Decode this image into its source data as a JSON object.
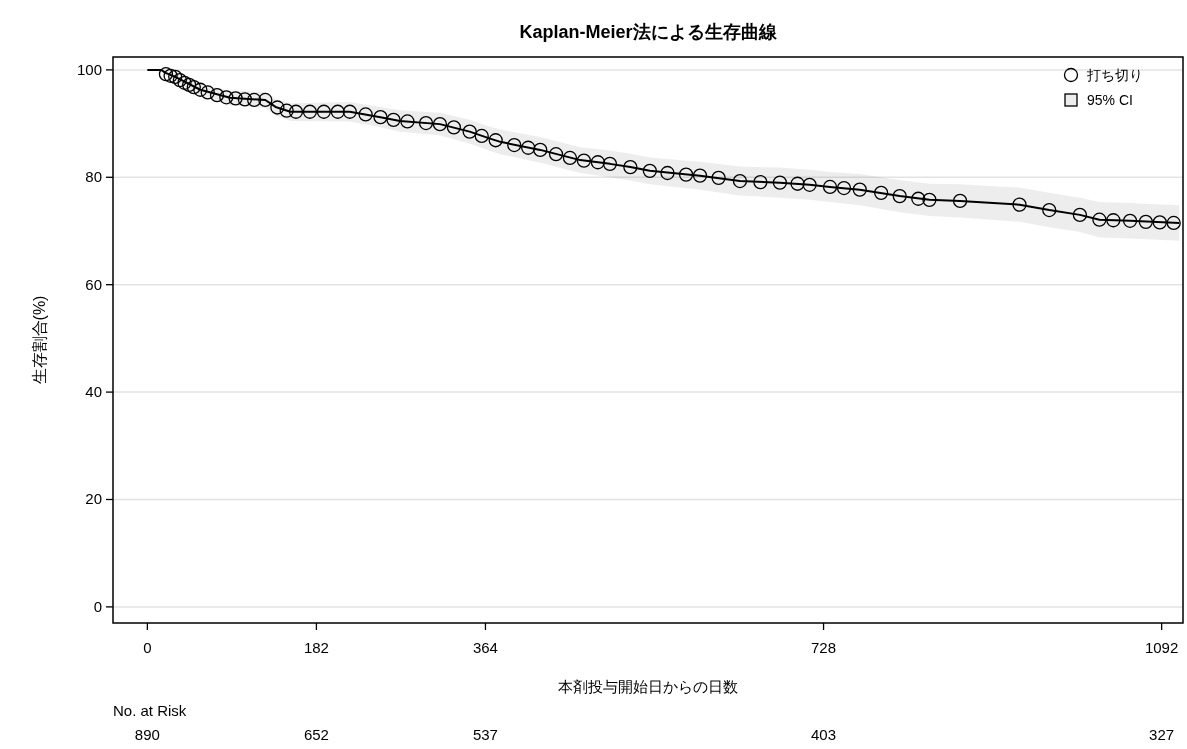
{
  "chart_data": {
    "type": "line",
    "title": "Kaplan-Meier法による生存曲線",
    "xlabel": "本剤投与開始日からの日数",
    "ylabel": "生存割合(%)",
    "xlim": [
      -37,
      1115
    ],
    "ylim": [
      -3,
      102.4
    ],
    "xticks": [
      0,
      182,
      364,
      728,
      1092
    ],
    "yticks": [
      0,
      20,
      40,
      60,
      80,
      100
    ],
    "grid": "y",
    "legend": "top right",
    "series": [
      {
        "type": "scatter",
        "name": "打ち切り",
        "color": "#000000",
        "marker": "circle",
        "x": [
          20,
          25,
          30,
          35,
          40,
          45,
          50,
          57,
          65,
          75,
          85,
          95,
          105,
          115,
          127,
          140,
          150,
          160,
          175,
          190,
          205,
          218,
          235,
          251,
          265,
          280,
          300,
          315,
          330,
          347,
          360,
          375,
          395,
          410,
          423,
          440,
          455,
          470,
          485,
          498,
          520,
          541,
          560,
          580,
          595,
          615,
          638,
          660,
          681,
          700,
          713,
          735,
          750,
          767,
          790,
          810,
          830,
          842,
          875,
          939,
          971,
          1004,
          1025,
          1040,
          1058,
          1075,
          1090,
          1105
        ],
        "values": [
          99.2,
          98.9,
          98.7,
          98.1,
          97.6,
          97.2,
          96.8,
          96.3,
          95.8,
          95.3,
          94.9,
          94.7,
          94.5,
          94.4,
          94.4,
          93.0,
          92.4,
          92.2,
          92.2,
          92.2,
          92.2,
          92.2,
          91.7,
          91.2,
          90.7,
          90.4,
          90.1,
          89.9,
          89.3,
          88.5,
          87.7,
          86.9,
          86.0,
          85.5,
          85.1,
          84.3,
          83.6,
          83.1,
          82.8,
          82.5,
          81.9,
          81.2,
          80.8,
          80.5,
          80.3,
          79.9,
          79.3,
          79.1,
          79.0,
          78.8,
          78.6,
          78.2,
          78.0,
          77.7,
          77.1,
          76.5,
          76.0,
          75.8,
          75.6,
          74.9,
          73.9,
          73.0,
          72.1,
          72.0,
          71.9,
          71.7,
          71.6,
          71.5
        ]
      },
      {
        "name": "95% CI",
        "color": "#000000",
        "marker": "none",
        "line_style": "solid",
        "x": [
          0,
          15,
          19,
          30,
          57,
          89,
          127,
          138,
          154,
          218,
          251,
          272,
          315,
          347,
          369,
          380,
          423,
          466,
          498,
          520,
          541,
          595,
          638,
          681,
          713,
          735,
          767,
          810,
          842,
          875,
          939,
          971,
          1004,
          1025,
          1058,
          1111
        ],
        "values": [
          100,
          100,
          99.5,
          98.7,
          96.3,
          94.8,
          94.4,
          93.1,
          92.2,
          92.2,
          91.2,
          90.5,
          89.9,
          88.5,
          87.2,
          86.6,
          85.1,
          83.2,
          82.5,
          81.9,
          81.2,
          80.3,
          79.3,
          79.0,
          78.6,
          78.2,
          77.7,
          76.5,
          75.8,
          75.6,
          74.9,
          73.9,
          73.0,
          72.1,
          71.9,
          71.5
        ],
        "lower": [
          100,
          100,
          99.0,
          97.9,
          95.1,
          93.4,
          92.9,
          91.5,
          90.5,
          90.4,
          89.3,
          88.5,
          87.8,
          86.3,
          84.9,
          84.3,
          82.7,
          80.8,
          80.0,
          79.4,
          78.7,
          77.7,
          76.6,
          76.2,
          75.8,
          75.4,
          74.8,
          73.5,
          72.8,
          72.5,
          71.7,
          70.7,
          69.8,
          68.8,
          68.6,
          68.2
        ],
        "upper": [
          100,
          100,
          99.9,
          99.4,
          97.4,
          96.1,
          95.9,
          94.6,
          93.8,
          94.0,
          93.1,
          92.5,
          92.0,
          90.7,
          89.4,
          88.9,
          87.5,
          85.6,
          85.0,
          84.4,
          83.7,
          82.9,
          82.0,
          81.8,
          81.4,
          81.0,
          80.6,
          79.5,
          78.8,
          78.7,
          78.1,
          77.1,
          76.2,
          75.4,
          75.2,
          74.8
        ]
      }
    ],
    "annotations": [
      "No. at Risk",
      "890",
      "652",
      "537",
      "403",
      "327"
    ]
  }
}
